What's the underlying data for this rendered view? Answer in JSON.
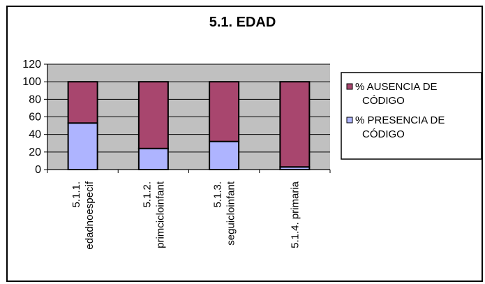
{
  "chart_data": {
    "type": "bar",
    "stacked": true,
    "title": "5.1. EDAD",
    "categories": [
      [
        "5.1.1.",
        "edadnoespecif"
      ],
      [
        "5.1.2.",
        "primcicloinfant"
      ],
      [
        "5.1.3.",
        "seguicloinfant"
      ],
      [
        "5.1.4. primaria"
      ]
    ],
    "series": [
      {
        "name": "% PRESENCIA DE CÓDIGO",
        "color": "#aeb4ff",
        "values": [
          53,
          24,
          32,
          3
        ]
      },
      {
        "name": "% AUSENCIA DE CÓDIGO",
        "color": "#a8466e",
        "values": [
          47,
          76,
          68,
          97
        ]
      }
    ],
    "legend_order": [
      {
        "line1": "% AUSENCIA DE",
        "line2": "CÓDIGO",
        "color": "#a8466e"
      },
      {
        "line1": " % PRESENCIA DE",
        "line2": "CÓDIGO",
        "color": "#aeb4ff"
      }
    ],
    "ylim": [
      0,
      120
    ],
    "yticks": [
      "0",
      "20",
      "40",
      "60",
      "80",
      "100",
      "120"
    ],
    "grid": true,
    "plot_background": "#c0c0c0",
    "legend_position": "right"
  }
}
